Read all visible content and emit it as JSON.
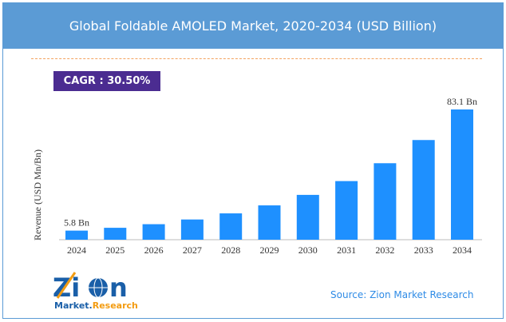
{
  "header": {
    "title": "Global Foldable AMOLED Market, 2020-2034 (USD Billion)"
  },
  "cagr": "CAGR : 30.50%",
  "source": "Source: Zion Market Research",
  "logo": {
    "text": "Zion Market Research"
  },
  "colors": {
    "header": "#5b9bd5",
    "bar": "#1e90ff",
    "cagr": "#4b2c91",
    "source": "#2e8be6"
  },
  "chart_data": {
    "type": "bar",
    "title": "Global Foldable AMOLED Market, 2020-2034 (USD Billion)",
    "ylabel": "Revenue (USD Mn/Bn)",
    "xlabel": "",
    "categories": [
      "2024",
      "2025",
      "2026",
      "2027",
      "2028",
      "2029",
      "2030",
      "2031",
      "2032",
      "2033",
      "2034"
    ],
    "values": [
      5.8,
      7.6,
      9.9,
      12.9,
      16.8,
      21.9,
      28.6,
      37.4,
      48.8,
      63.6,
      83.1
    ],
    "data_labels": {
      "0": "5.8 Bn",
      "10": "83.1 Bn"
    },
    "ylim": [
      0,
      83.1
    ],
    "grid": false,
    "legend": "none"
  }
}
